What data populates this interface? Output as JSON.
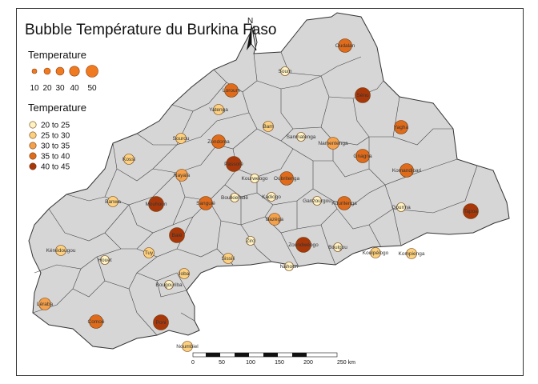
{
  "map": {
    "title": "Bubble Température du Burkina Faso",
    "north_label": "N",
    "size_legend": {
      "title": "Temperature",
      "labels": [
        "10",
        "20",
        "30",
        "40",
        "50"
      ],
      "fill": "#f07a20"
    },
    "class_legend": {
      "title": "Temperature",
      "classes": [
        {
          "label": "20 to 25",
          "color": "#fff3c2"
        },
        {
          "label": "25 to 30",
          "color": "#fcd07e"
        },
        {
          "label": "30 to 35",
          "color": "#f5a04a"
        },
        {
          "label": "35 to 40",
          "color": "#e06c1b"
        },
        {
          "label": "40 to 45",
          "color": "#a8380a"
        }
      ]
    },
    "scale_bar": {
      "labels": [
        "0",
        "50",
        "100",
        "150",
        "200",
        "250 km"
      ]
    },
    "colors": {
      "country_fill": "#d6d6d6",
      "border": "#333333"
    },
    "provinces": [
      {
        "name": "Oudalan",
        "class": 3
      },
      {
        "name": "Soum",
        "class": 0
      },
      {
        "name": "Séno",
        "class": 4
      },
      {
        "name": "Loroum",
        "class": 3
      },
      {
        "name": "Yatenga",
        "class": 1
      },
      {
        "name": "Bam",
        "class": 1
      },
      {
        "name": "Sanmatenga",
        "class": 0
      },
      {
        "name": "Namentenga",
        "class": 2
      },
      {
        "name": "Yagha",
        "class": 3
      },
      {
        "name": "Sourou",
        "class": 1
      },
      {
        "name": "Zondoma",
        "class": 3
      },
      {
        "name": "Passoré",
        "class": 4
      },
      {
        "name": "Kossi",
        "class": 1
      },
      {
        "name": "Gnagna",
        "class": 3
      },
      {
        "name": "Komandjoari",
        "class": 3
      },
      {
        "name": "Nayala",
        "class": 2
      },
      {
        "name": "Kourweogo",
        "class": 0
      },
      {
        "name": "Oubritenga",
        "class": 3
      },
      {
        "name": "Tapoa",
        "class": 4
      },
      {
        "name": "Banwa",
        "class": 1
      },
      {
        "name": "Mouhoun",
        "class": 4
      },
      {
        "name": "Sanguié",
        "class": 3
      },
      {
        "name": "Boulkiemdé",
        "class": 0
      },
      {
        "name": "Kadiogo",
        "class": 0
      },
      {
        "name": "Ganzourgou",
        "class": 0
      },
      {
        "name": "Kouritenga",
        "class": 3
      },
      {
        "name": "Gourma",
        "class": 0
      },
      {
        "name": "Balé",
        "class": 4
      },
      {
        "name": "Bazèga",
        "class": 2
      },
      {
        "name": "Kénédougou",
        "class": 1
      },
      {
        "name": "Tuy",
        "class": 1
      },
      {
        "name": "Ziro",
        "class": 0
      },
      {
        "name": "Zoundwéogo",
        "class": 4
      },
      {
        "name": "Boulgou",
        "class": 0
      },
      {
        "name": "Koulpélogo",
        "class": 1
      },
      {
        "name": "Kompienga",
        "class": 1
      },
      {
        "name": "Houet",
        "class": 0
      },
      {
        "name": "Sissili",
        "class": 1
      },
      {
        "name": "Nahouri",
        "class": 0
      },
      {
        "name": "Ioba",
        "class": 1
      },
      {
        "name": "Bougouriba",
        "class": 0
      },
      {
        "name": "Léraba",
        "class": 2
      },
      {
        "name": "Comoé",
        "class": 3
      },
      {
        "name": "Poni",
        "class": 4
      },
      {
        "name": "Noumbiel",
        "class": 1
      }
    ]
  }
}
